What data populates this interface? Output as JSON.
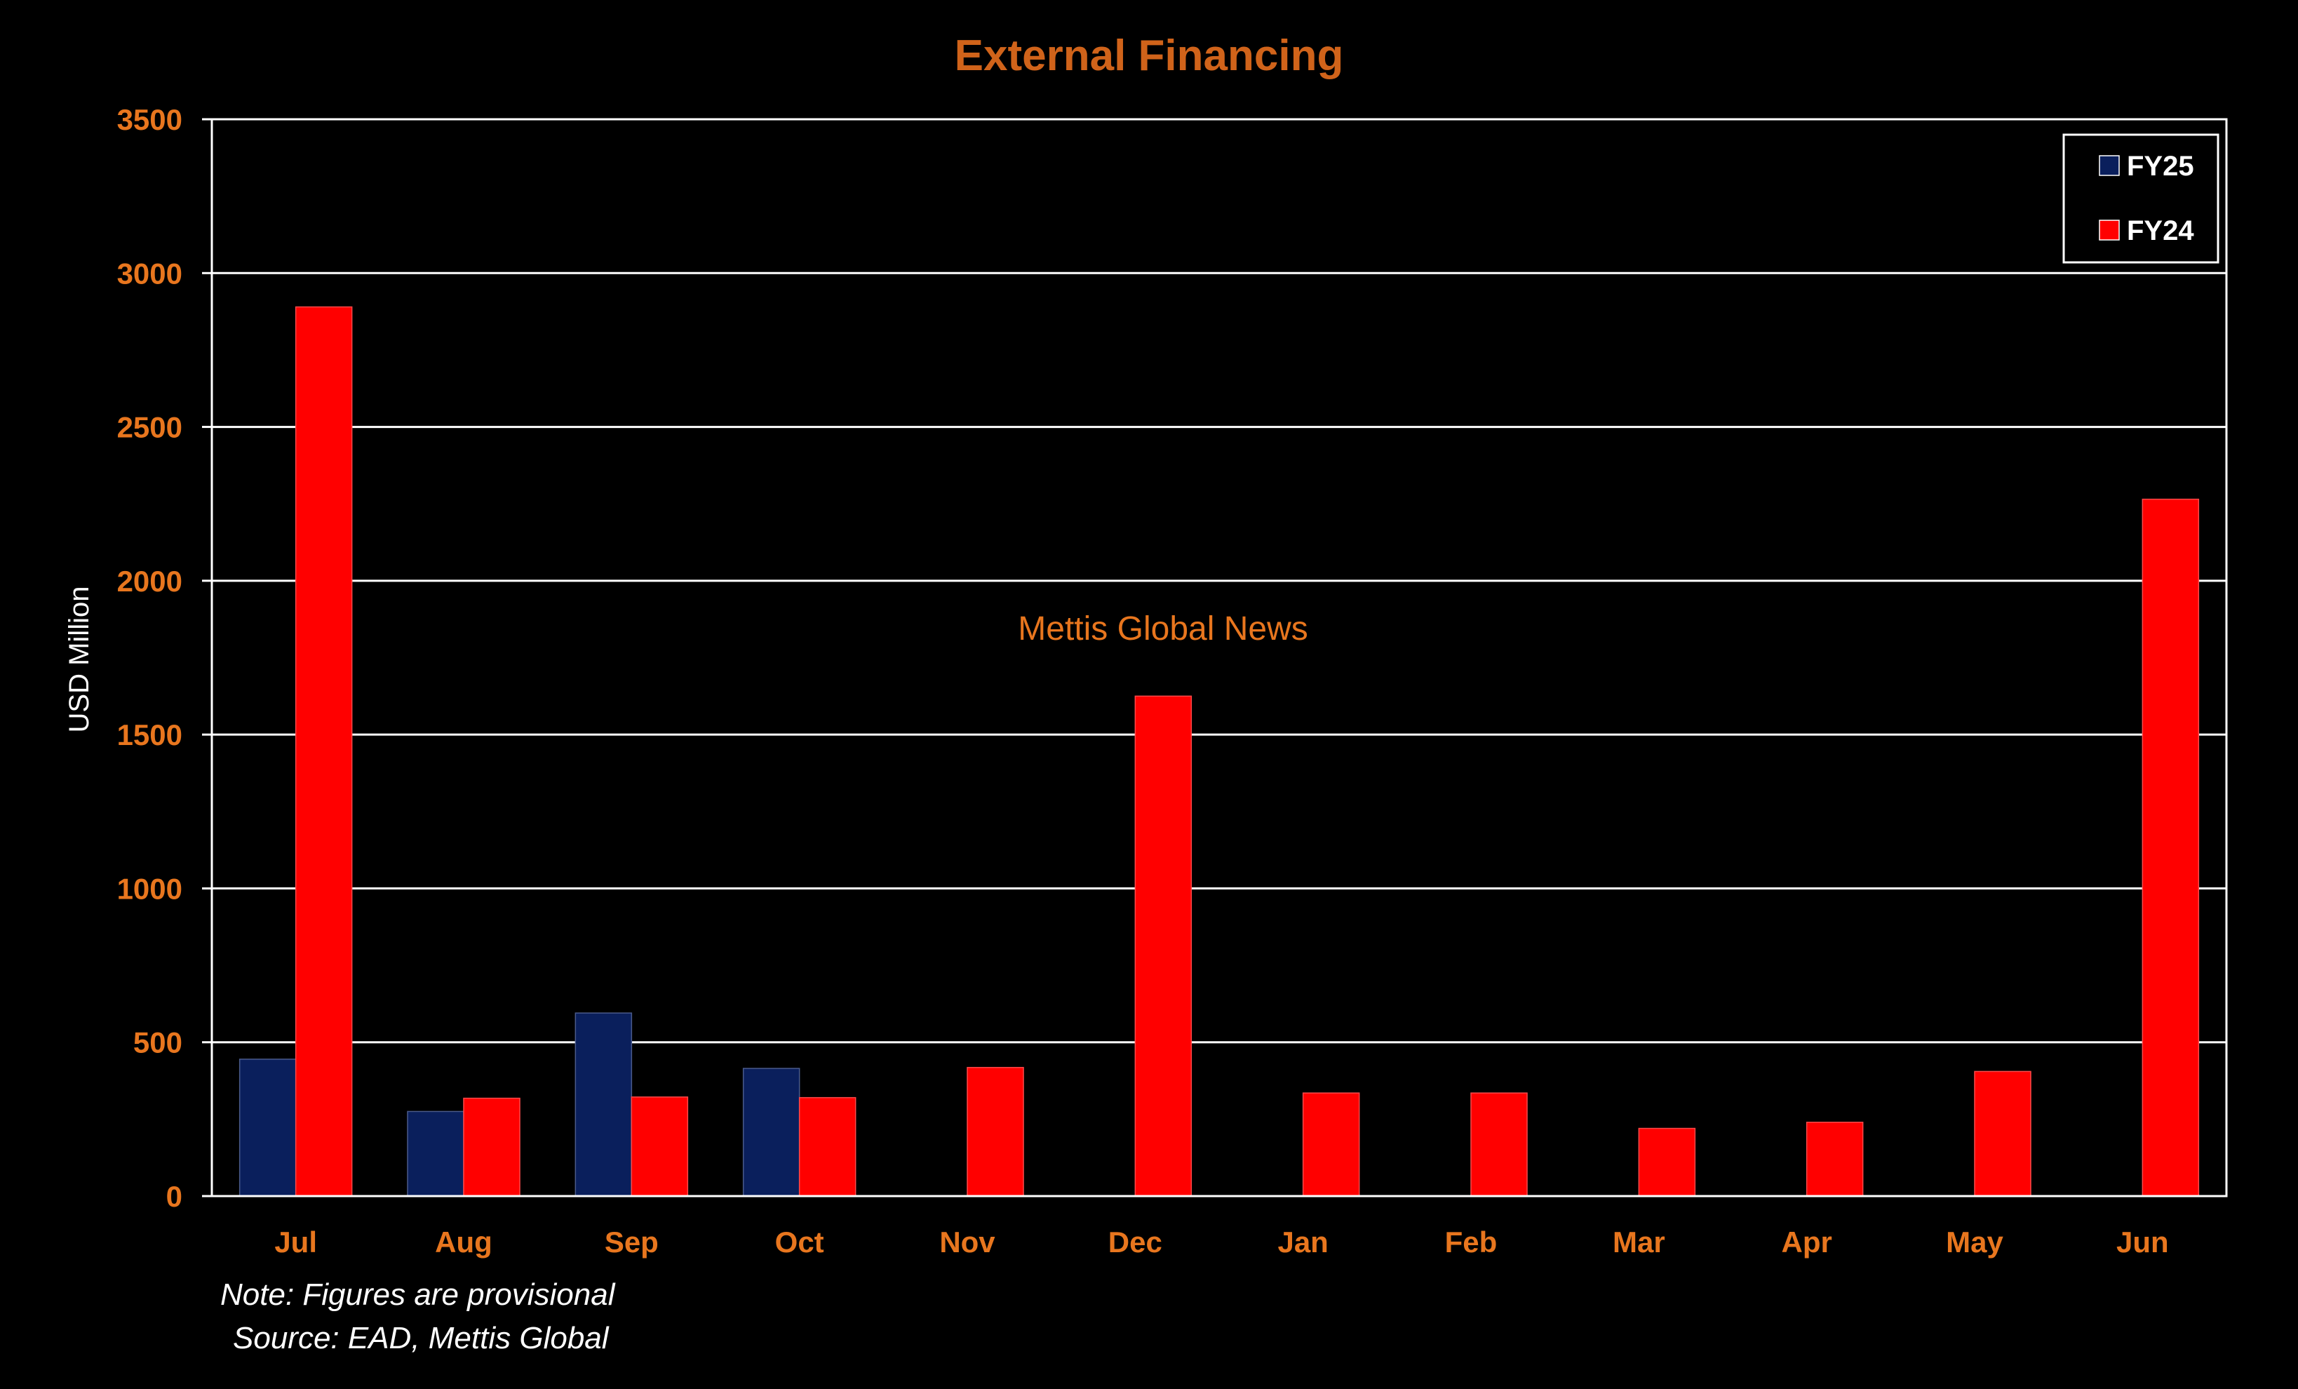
{
  "chart_data": {
    "type": "bar",
    "title": "External Financing",
    "ylabel": "USD Million",
    "xlabel": "",
    "ylim": [
      0,
      3500
    ],
    "yticks": [
      0,
      500,
      1000,
      1500,
      2000,
      2500,
      3000,
      3500
    ],
    "grid": true,
    "legend_position": "top-right",
    "categories": [
      "Jul",
      "Aug",
      "Sep",
      "Oct",
      "Nov",
      "Dec",
      "Jan",
      "Feb",
      "Mar",
      "Apr",
      "May",
      "Jun"
    ],
    "series": [
      {
        "name": "FY25",
        "color": "#0a1f5c",
        "values": [
          445,
          275,
          595,
          415,
          null,
          null,
          null,
          null,
          null,
          null,
          null,
          null
        ]
      },
      {
        "name": "FY24",
        "color": "#ff0000",
        "values": [
          2890,
          318,
          322,
          320,
          418,
          1625,
          335,
          335,
          220,
          240,
          405,
          2265
        ]
      }
    ]
  },
  "watermark": "Mettis Global News",
  "note": "Note: Figures are provisional",
  "source": "Source: EAD, Mettis Global"
}
